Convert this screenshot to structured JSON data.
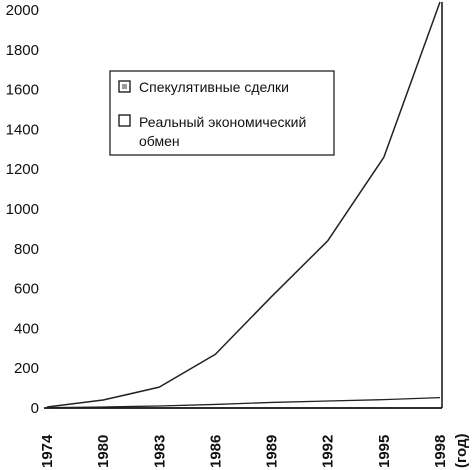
{
  "chart_data": {
    "type": "line",
    "categories": [
      "1974",
      "1980",
      "1983",
      "1986",
      "1989",
      "1992",
      "1995",
      "1998"
    ],
    "x_suffix": "(год)",
    "series": [
      {
        "name": "Спекулятивные сделки",
        "values": [
          5,
          40,
          105,
          270,
          560,
          840,
          1260,
          2040
        ],
        "color": "#222222"
      },
      {
        "name": "Реальный экономический обмен",
        "name_lines": [
          "Реальный экономический",
          "обмен"
        ],
        "values": [
          2,
          5,
          10,
          18,
          28,
          35,
          42,
          52
        ],
        "color": "#222222"
      }
    ],
    "ylim": [
      0,
      2000
    ],
    "yticks": [
      0,
      200,
      400,
      600,
      800,
      1000,
      1200,
      1400,
      1600,
      1800,
      2000
    ],
    "legend_position": "top-center",
    "grid": false
  }
}
